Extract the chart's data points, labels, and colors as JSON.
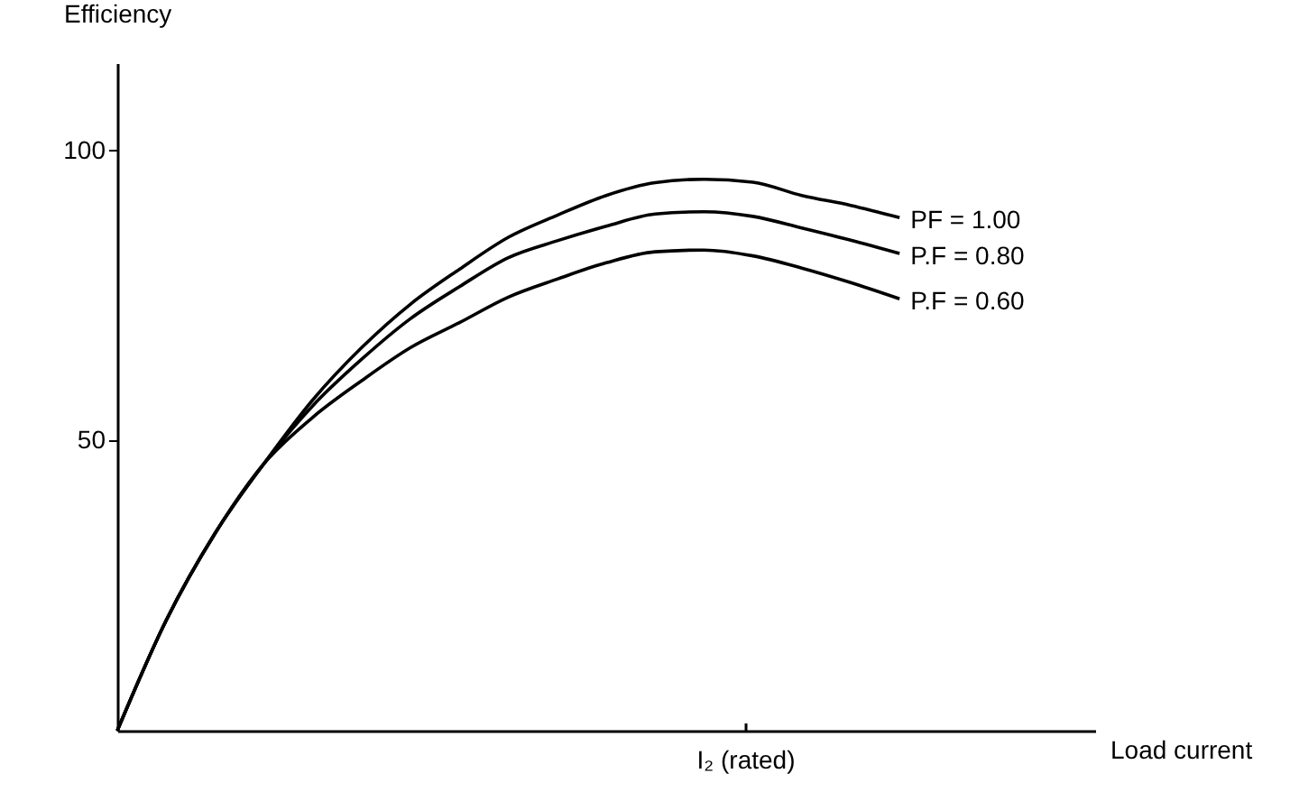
{
  "chart_data": {
    "type": "line",
    "xlabel": "Load current",
    "ylabel": "Efficiency",
    "categories": [
      null,
      null,
      null,
      null,
      null,
      null,
      null,
      null,
      null,
      null,
      null,
      null,
      null,
      null,
      null,
      null,
      null,
      null,
      null,
      null,
      null
    ],
    "series": [
      {
        "name": "PF = 1.00",
        "color": "#000000",
        "values": [
          0,
          19,
          34,
          46,
          57,
          66,
          73.5,
          79.5,
          85,
          88.8,
          92.2,
          94.4,
          95,
          94.5,
          92.2,
          90.5,
          88.4,
          null,
          null,
          null,
          null
        ]
      },
      {
        "name": "P.F = 0.80",
        "color": "#000000",
        "values": [
          0,
          19,
          34,
          46,
          56,
          64,
          71,
          76.5,
          81.5,
          84.4,
          86.9,
          89,
          89.4,
          88.6,
          86.6,
          84.5,
          82.2,
          null,
          null,
          null,
          null
        ]
      },
      {
        "name": "P.F = 0.60",
        "color": "#000000",
        "values": [
          0,
          19,
          34,
          46,
          54,
          60.3,
          66,
          70.3,
          74.7,
          77.8,
          80.6,
          82.5,
          82.8,
          81.8,
          79.7,
          77.2,
          74.4,
          null,
          null,
          null,
          null
        ]
      }
    ],
    "annotations": [
      "I₂ (rated)"
    ],
    "ylim": [
      0,
      115
    ],
    "yticks": [
      50,
      100
    ],
    "grid": false,
    "legend": false,
    "marker": "none",
    "line_style": "solid"
  }
}
